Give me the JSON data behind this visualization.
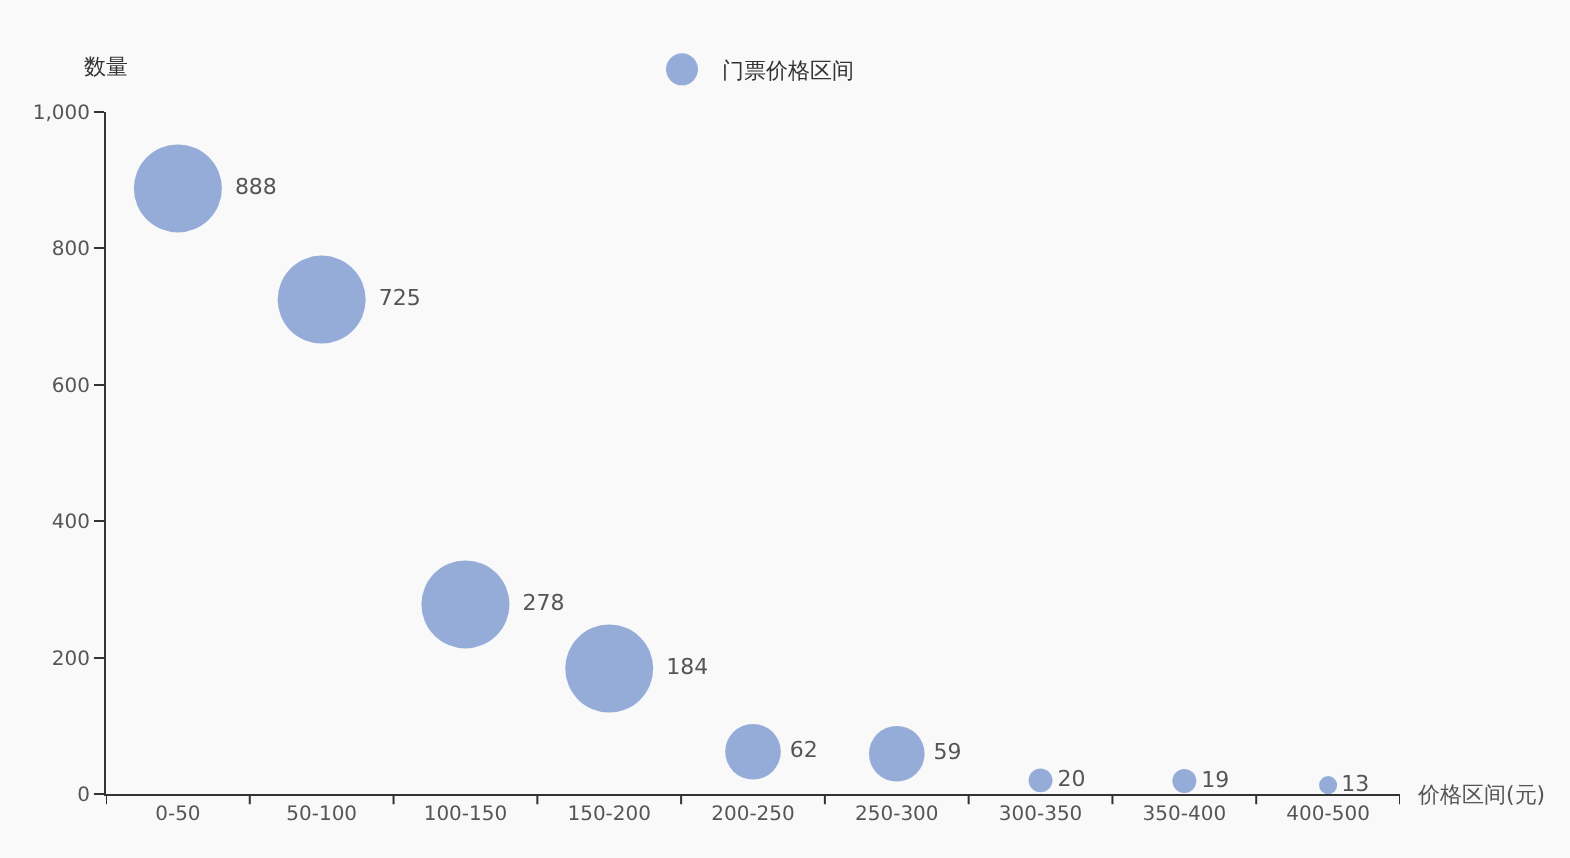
{
  "chart_data": {
    "type": "bubble",
    "xlabel": "价格区间(元)",
    "ylabel": "数量",
    "legend": "top",
    "categories": [
      "0-50",
      "50-100",
      "100-150",
      "150-200",
      "200-250",
      "250-300",
      "300-350",
      "350-400",
      "400-500"
    ],
    "series": [
      {
        "name": "门票价格区间",
        "color": "#6b8ccb",
        "values": [
          888,
          725,
          278,
          184,
          62,
          59,
          20,
          19,
          13
        ],
        "sizes": [
          1,
          1,
          1,
          1,
          0.4,
          0.4,
          0.074,
          0.074,
          0.042
        ]
      }
    ],
    "ylim": [
      0,
      1000
    ],
    "yticks": [
      0,
      200,
      400,
      600,
      800,
      {
        "value": 1000,
        "label": "1,000"
      }
    ],
    "grid": false,
    "data_labels": true
  }
}
